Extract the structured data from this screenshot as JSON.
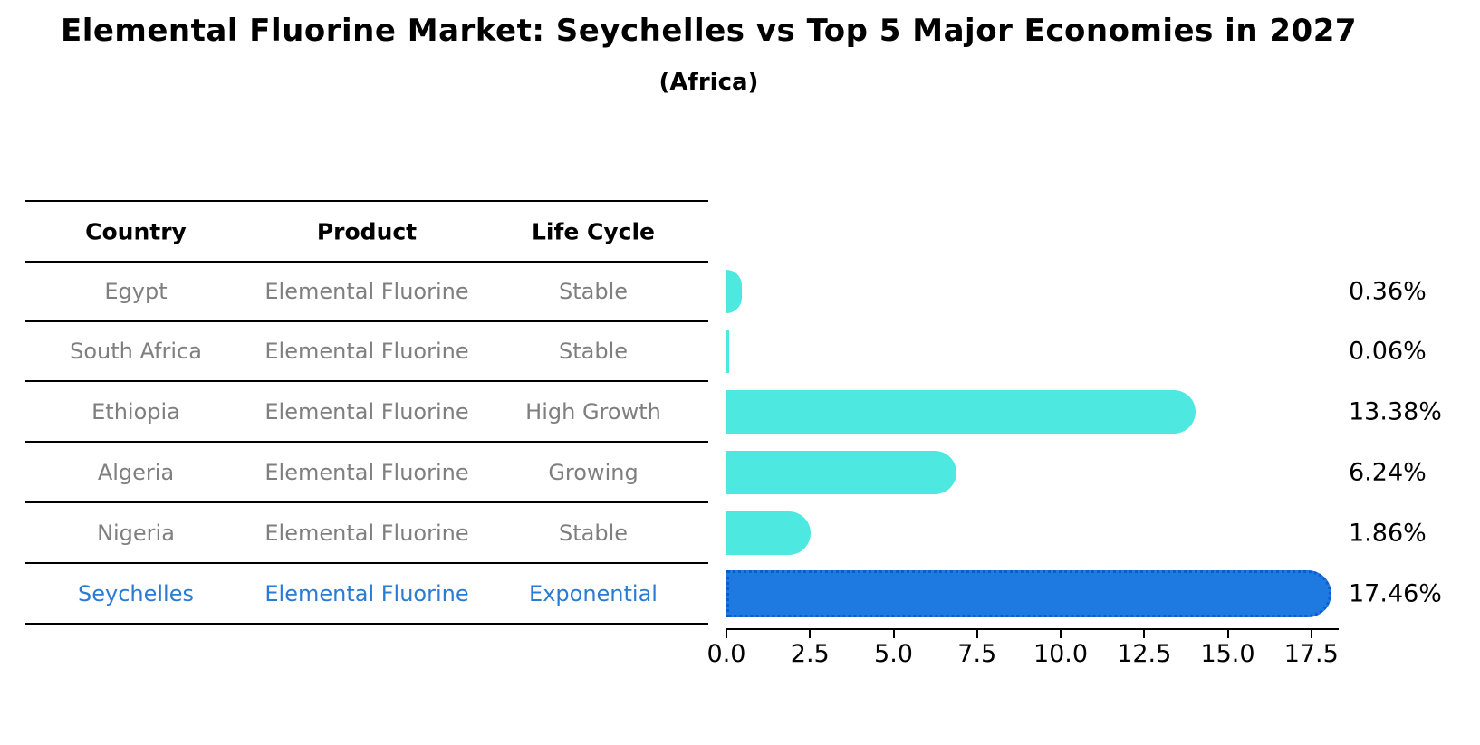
{
  "title": "Elemental Fluorine Market: Seychelles vs Top 5 Major Economies in 2027",
  "subtitle": "(Africa)",
  "table": {
    "columns": [
      "Country",
      "Product",
      "Life Cycle"
    ],
    "rows": [
      {
        "country": "Egypt",
        "product": "Elemental Fluorine",
        "life_cycle": "Stable",
        "highlighted": false
      },
      {
        "country": "South Africa",
        "product": "Elemental Fluorine",
        "life_cycle": "Stable",
        "highlighted": false
      },
      {
        "country": "Ethiopia",
        "product": "Elemental Fluorine",
        "life_cycle": "High Growth",
        "highlighted": false
      },
      {
        "country": "Algeria",
        "product": "Elemental Fluorine",
        "life_cycle": "Growing",
        "highlighted": false
      },
      {
        "country": "Nigeria",
        "product": "Elemental Fluorine",
        "life_cycle": "Stable",
        "highlighted": false
      },
      {
        "country": "Seychelles",
        "product": "Elemental Fluorine",
        "life_cycle": "Exponential",
        "highlighted": true
      }
    ]
  },
  "chart_data": {
    "type": "bar",
    "orientation": "horizontal",
    "title": "Elemental Fluorine Market: Seychelles vs Top 5 Major Economies in 2027 (Africa)",
    "categories": [
      "Egypt",
      "South Africa",
      "Ethiopia",
      "Algeria",
      "Nigeria",
      "Seychelles"
    ],
    "values": [
      0.36,
      0.06,
      13.38,
      6.24,
      1.86,
      17.46
    ],
    "value_labels": [
      "0.36%",
      "0.06%",
      "13.38%",
      "6.24%",
      "1.86%",
      "17.46%"
    ],
    "xticks": [
      0.0,
      2.5,
      5.0,
      7.5,
      10.0,
      12.5,
      15.0,
      17.5
    ],
    "xtick_labels": [
      "0.0",
      "2.5",
      "5.0",
      "7.5",
      "10.0",
      "12.5",
      "15.0",
      "17.5"
    ],
    "xlim": [
      0,
      18.3
    ],
    "grid": false,
    "legend": "none",
    "highlight_index": 5,
    "highlight_edge_style": "dotted"
  },
  "colors": {
    "bar_teal": "#4de8e0",
    "bar_highlight_blue": "#1e7ae1",
    "highlight_edge_blue": "#0b5cce",
    "highlight_text_blue": "#2a7bd2",
    "table_text_gray": "#7f7f7f",
    "text_black": "#000000"
  }
}
